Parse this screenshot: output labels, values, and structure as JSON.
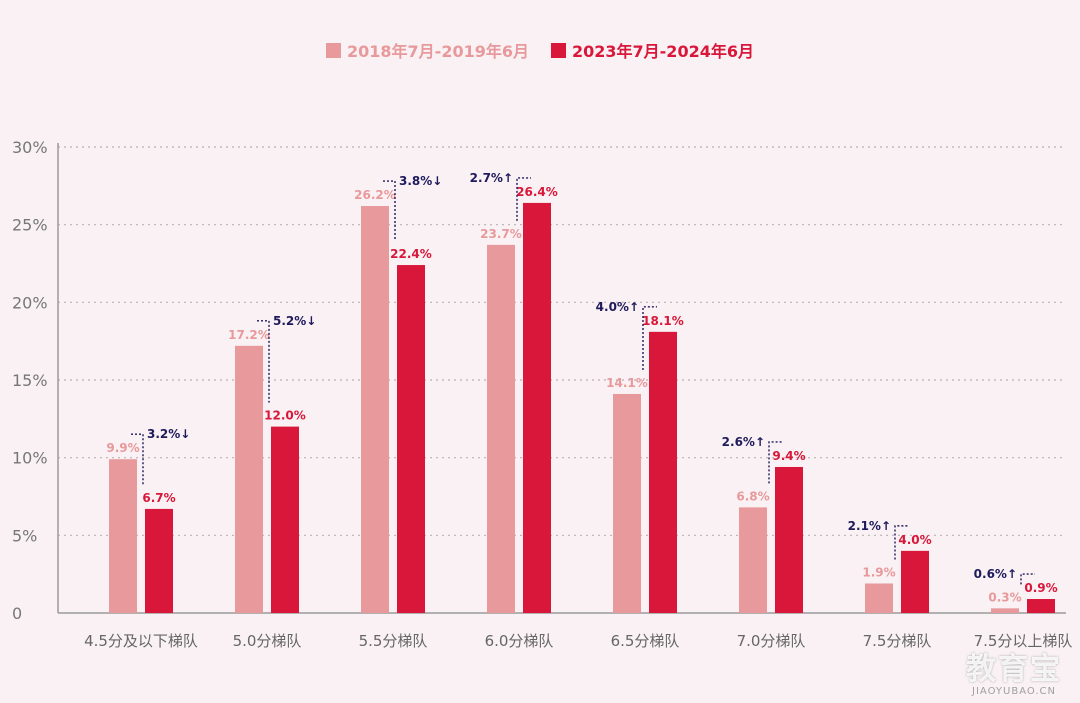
{
  "chart_data": {
    "type": "bar",
    "categories": [
      "4.5分及以下梯队",
      "5.0分梯队",
      "5.5分梯队",
      "6.0分梯队",
      "6.5分梯队",
      "7.0分梯队",
      "7.5分梯队",
      "7.5分以上梯队"
    ],
    "series": [
      {
        "name": "2018年7月-2019年6月",
        "color": "#e8999c",
        "values": [
          9.9,
          17.2,
          26.2,
          23.7,
          14.1,
          6.8,
          1.9,
          0.3
        ],
        "labels": [
          "9.9%",
          "17.2%",
          "26.2%",
          "23.7%",
          "14.1%",
          "6.8%",
          "1.9%",
          "0.3%"
        ]
      },
      {
        "name": "2023年7月-2024年6月",
        "color": "#d8173a",
        "values": [
          6.7,
          12.0,
          22.4,
          26.4,
          18.1,
          9.4,
          4.0,
          0.9
        ],
        "labels": [
          "6.7%",
          "12.0%",
          "22.4%",
          "26.4%",
          "18.1%",
          "9.4%",
          "4.0%",
          "0.9%"
        ]
      }
    ],
    "changes": [
      "3.2%↓",
      "5.2%↓",
      "3.8%↓",
      "2.7%↑",
      "4.0%↑",
      "2.6%↑",
      "2.1%↑",
      "0.6%↑"
    ],
    "change_color": "#1f1a5c",
    "yticks": [
      "0",
      "5%",
      "10%",
      "15%",
      "20%",
      "25%",
      "30%"
    ],
    "ylim": [
      0,
      30
    ],
    "grid": true,
    "legend_position": "top-center"
  },
  "watermark": {
    "main": "教育宝",
    "sub": "JIAOYUBAO.CN"
  }
}
